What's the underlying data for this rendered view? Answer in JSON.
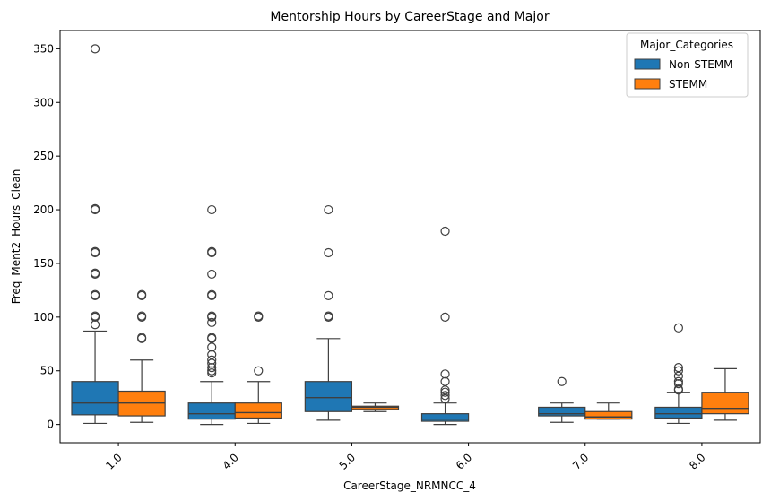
{
  "chart_data": {
    "type": "boxplot",
    "title": "Mentorship Hours by CareerStage and Major",
    "xlabel": "CareerStage_NRMNCC_4",
    "ylabel": "Freq_Ment2_Hours_Clean",
    "ylim": [
      -17,
      367
    ],
    "yticks": [
      0,
      50,
      100,
      150,
      200,
      250,
      300,
      350
    ],
    "categories": [
      "1.0",
      "4.0",
      "5.0",
      "6.0",
      "7.0",
      "8.0"
    ],
    "legend": {
      "title": "Major_Categories",
      "position": "top-right",
      "entries": [
        "Non-STEMM",
        "STEMM"
      ]
    },
    "series": [
      {
        "name": "Non-STEMM",
        "color": "#1f77b4",
        "boxes": [
          {
            "whislo": 1,
            "q1": 9,
            "med": 20,
            "q3": 40,
            "whishi": 87,
            "fliers": [
              93,
              100,
              101,
              120,
              121,
              140,
              141,
              160,
              161,
              200,
              201,
              350
            ]
          },
          {
            "whislo": 0,
            "q1": 5,
            "med": 10,
            "q3": 20,
            "whishi": 40,
            "fliers": [
              48,
              50,
              53,
              57,
              60,
              65,
              72,
              80,
              81,
              95,
              100,
              101,
              120,
              121,
              140,
              160,
              161,
              200
            ]
          },
          {
            "whislo": 4,
            "q1": 12,
            "med": 25,
            "q3": 40,
            "whishi": 80,
            "fliers": [
              100,
              101,
              120,
              160,
              200
            ]
          },
          {
            "whislo": 0,
            "q1": 3,
            "med": 5,
            "q3": 10,
            "whishi": 20,
            "fliers": [
              24,
              27,
              30,
              32,
              40,
              47,
              100,
              180
            ]
          },
          {
            "whislo": 2,
            "q1": 8,
            "med": 10,
            "q3": 16,
            "whishi": 20,
            "fliers": [
              40
            ]
          },
          {
            "whislo": 1,
            "q1": 6,
            "med": 10,
            "q3": 16,
            "whishi": 30,
            "fliers": [
              32,
              33,
              38,
              40,
              45,
              50,
              53,
              90
            ]
          }
        ]
      },
      {
        "name": "STEMM",
        "color": "#ff7f0e",
        "boxes": [
          {
            "whislo": 2,
            "q1": 8,
            "med": 20,
            "q3": 31,
            "whishi": 60,
            "fliers": [
              80,
              81,
              100,
              101,
              120,
              121
            ]
          },
          {
            "whislo": 1,
            "q1": 6,
            "med": 11,
            "q3": 20,
            "whishi": 40,
            "fliers": [
              50,
              100,
              101
            ]
          },
          {
            "whislo": 12,
            "q1": 14,
            "med": 16,
            "q3": 17,
            "whishi": 20,
            "fliers": []
          },
          null,
          {
            "whislo": 5,
            "q1": 5,
            "med": 7,
            "q3": 12,
            "whishi": 20,
            "fliers": []
          },
          {
            "whislo": 4,
            "q1": 10,
            "med": 15,
            "q3": 30,
            "whishi": 52,
            "fliers": []
          }
        ]
      }
    ]
  }
}
